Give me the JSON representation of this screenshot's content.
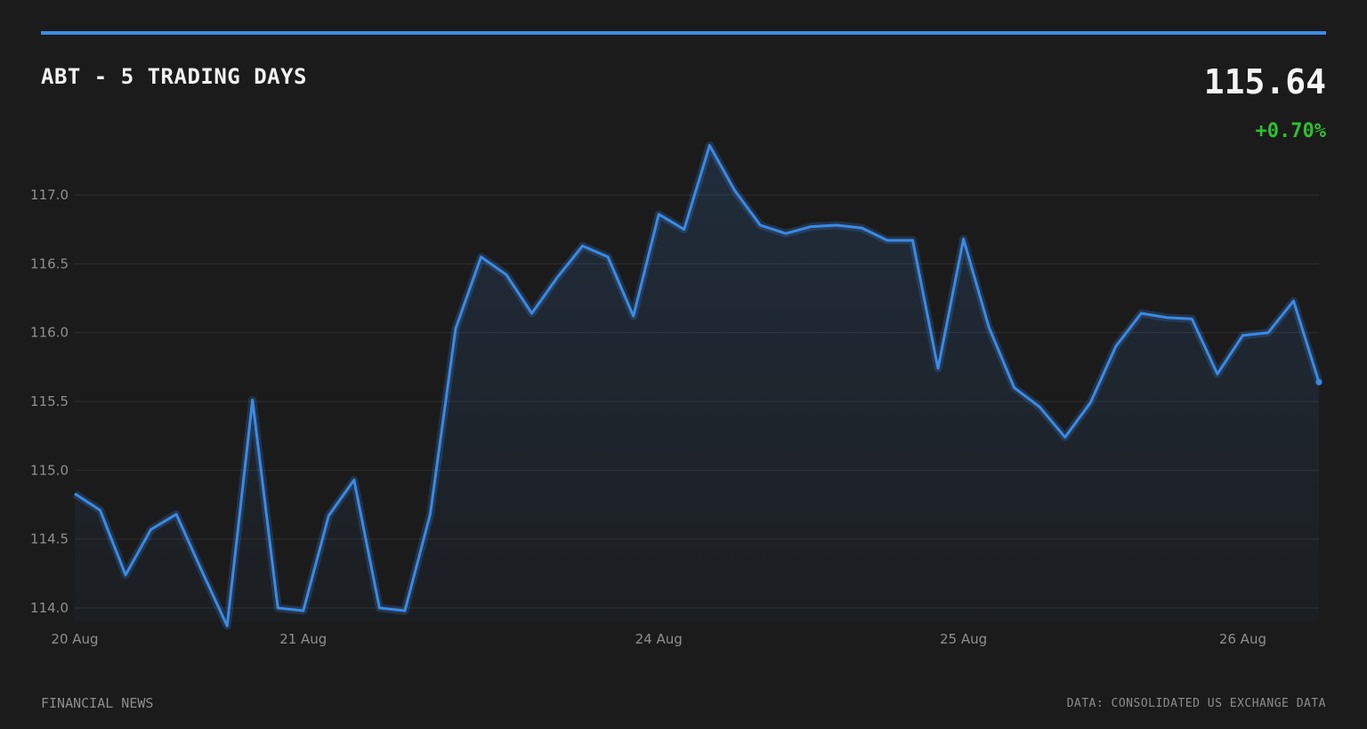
{
  "header": {
    "title": "ABT - 5 TRADING DAYS",
    "price": "115.64",
    "change": "+0.70%",
    "change_color": "#2fbf2f"
  },
  "footer": {
    "source_left": "FINANCIAL NEWS",
    "source_right": "DATA: CONSOLIDATED US EXCHANGE DATA"
  },
  "chart_data": {
    "type": "area",
    "ylim": [
      113.9,
      117.4
    ],
    "y_ticks": [
      "114.0",
      "114.5",
      "115.0",
      "115.5",
      "116.0",
      "116.5",
      "117.0"
    ],
    "x_tick_labels": [
      {
        "label": "20 Aug",
        "index": 0
      },
      {
        "label": "21 Aug",
        "index": 9
      },
      {
        "label": "24 Aug",
        "index": 23
      },
      {
        "label": "25 Aug",
        "index": 35
      },
      {
        "label": "26 Aug",
        "index": 46
      }
    ],
    "grid": true,
    "line_color": "#3b8ae6",
    "series": [
      {
        "values": [
          114.83,
          114.71,
          114.24,
          114.57,
          114.68,
          114.27,
          113.87,
          115.51,
          114.0,
          113.98,
          114.67,
          114.93,
          114.0,
          113.98,
          114.68,
          116.03,
          116.55,
          116.42,
          116.14,
          116.4,
          116.63,
          116.55,
          116.12,
          116.86,
          116.75,
          117.36,
          117.03,
          116.78,
          116.72,
          116.77,
          116.78,
          116.76,
          116.67,
          116.67,
          115.74,
          116.68,
          116.04,
          115.6,
          115.46,
          115.24,
          115.49,
          115.9,
          116.14,
          116.11,
          116.1,
          115.7,
          115.98,
          116.0,
          116.23,
          115.64
        ]
      }
    ]
  }
}
